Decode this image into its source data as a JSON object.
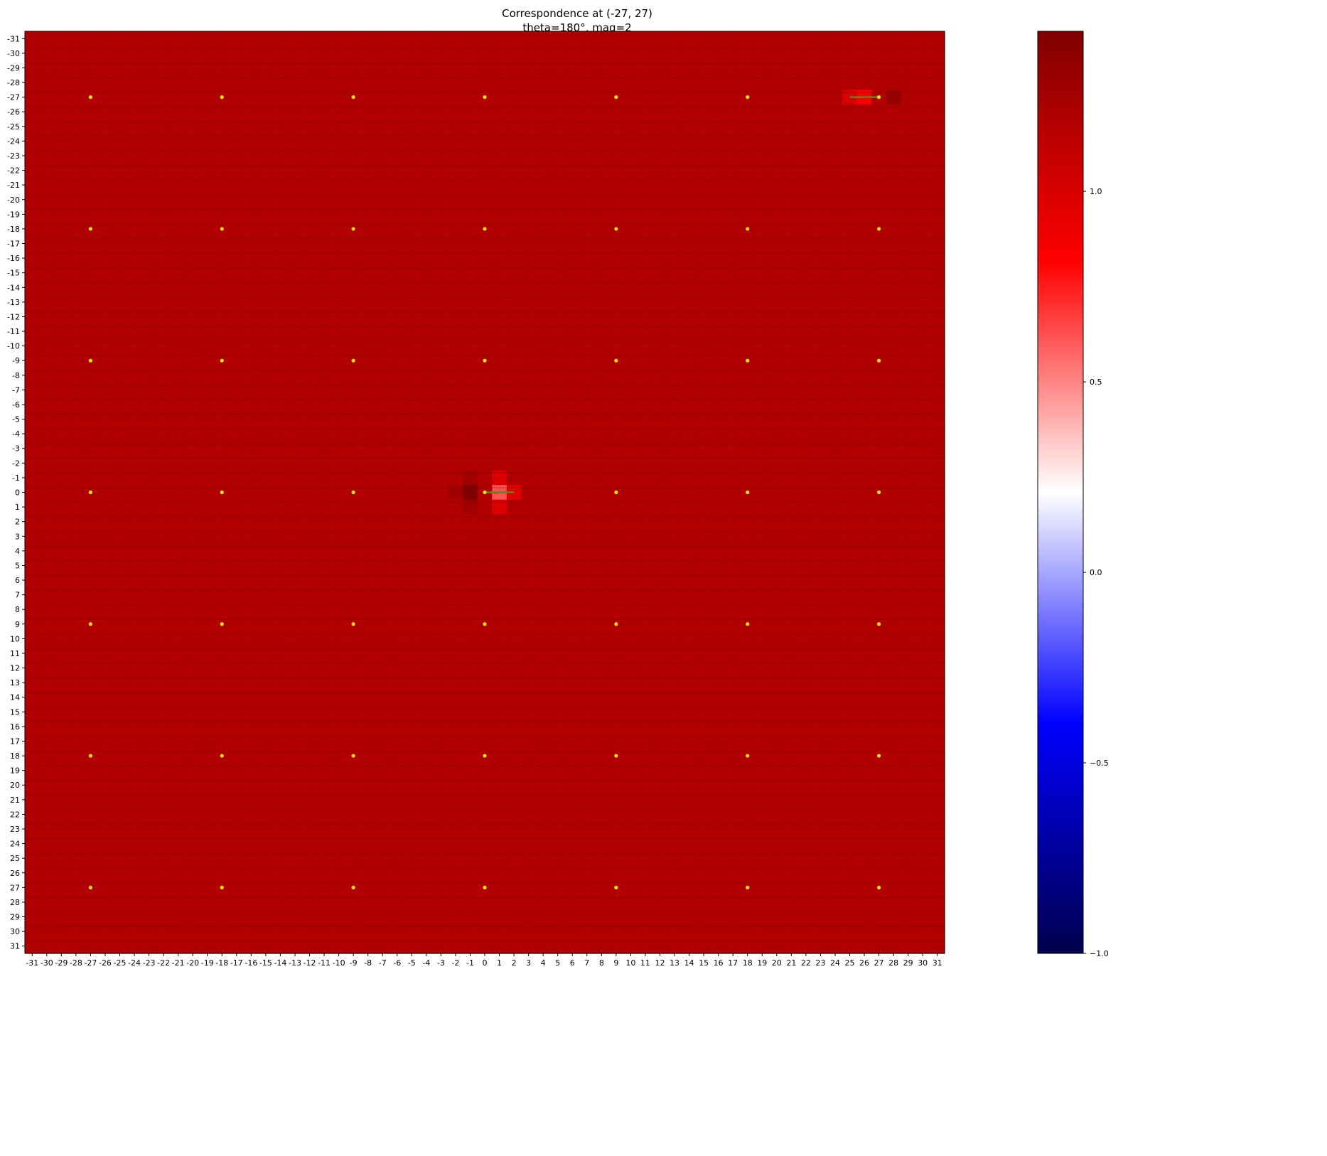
{
  "chart_data": {
    "type": "heatmap",
    "title": "Correspondence at (-27, 27)",
    "subtitle": "theta=180°, mag=2",
    "x_ticks": [
      -31,
      -30,
      -29,
      -28,
      -27,
      -26,
      -25,
      -24,
      -23,
      -22,
      -21,
      -20,
      -19,
      -18,
      -17,
      -16,
      -15,
      -14,
      -13,
      -12,
      -11,
      -10,
      -9,
      -8,
      -7,
      -6,
      -5,
      -4,
      -3,
      -2,
      -1,
      0,
      1,
      2,
      3,
      4,
      5,
      6,
      7,
      8,
      9,
      10,
      11,
      12,
      13,
      14,
      15,
      16,
      17,
      18,
      19,
      20,
      21,
      22,
      23,
      24,
      25,
      26,
      27,
      28,
      29,
      30,
      31
    ],
    "y_ticks": [
      -31,
      -30,
      -29,
      -28,
      -27,
      -26,
      -25,
      -24,
      -23,
      -22,
      -21,
      -20,
      -19,
      -18,
      -17,
      -16,
      -15,
      -14,
      -13,
      -12,
      -11,
      -10,
      -9,
      -8,
      -7,
      -6,
      -5,
      -4,
      -3,
      -2,
      -1,
      0,
      1,
      2,
      3,
      4,
      5,
      6,
      7,
      8,
      9,
      10,
      11,
      12,
      13,
      14,
      15,
      16,
      17,
      18,
      19,
      20,
      21,
      22,
      23,
      24,
      25,
      26,
      27,
      28,
      29,
      30,
      31
    ],
    "xlim": [
      -31.5,
      31.5
    ],
    "ylim": [
      31.5,
      -31.5
    ],
    "base_value": 1.18,
    "anomalies": [
      {
        "x": -1,
        "y": 0,
        "value": 1.42
      },
      {
        "x": -2,
        "y": 0,
        "value": 1.26
      },
      {
        "x": -1,
        "y": -1,
        "value": 1.26
      },
      {
        "x": -1,
        "y": 1,
        "value": 1.26
      },
      {
        "x": 1,
        "y": 0,
        "value": 0.62
      },
      {
        "x": 2,
        "y": 0,
        "value": 0.95
      },
      {
        "x": 1,
        "y": 1,
        "value": 0.98
      },
      {
        "x": 1,
        "y": -1,
        "value": 0.98
      },
      {
        "x": 26,
        "y": -27,
        "value": 0.85
      },
      {
        "x": 25,
        "y": -27,
        "value": 1.0
      },
      {
        "x": 28,
        "y": -27,
        "value": 1.32
      }
    ],
    "markers": {
      "x": [
        -27,
        -18,
        -9,
        0,
        9,
        18,
        27
      ],
      "y": [
        -27,
        -18,
        -9,
        0,
        9,
        18,
        27
      ],
      "color": "#e8e800"
    },
    "vectors": [
      {
        "x0": 0,
        "y0": 0,
        "x1": 2,
        "y1": 0,
        "color": "#5a8a1a"
      },
      {
        "x0": 25,
        "y0": -27,
        "x1": 27,
        "y1": -27,
        "color": "#5a8a1a"
      }
    ],
    "colorbar": {
      "cmap": "seismic",
      "range": [
        -1.0,
        1.42
      ],
      "ticks": [
        -1.0,
        -0.5,
        0.0,
        0.5,
        1.0
      ],
      "tick_labels": [
        "−1.0",
        "−0.5",
        "0.0",
        "0.5",
        "1.0"
      ]
    }
  }
}
